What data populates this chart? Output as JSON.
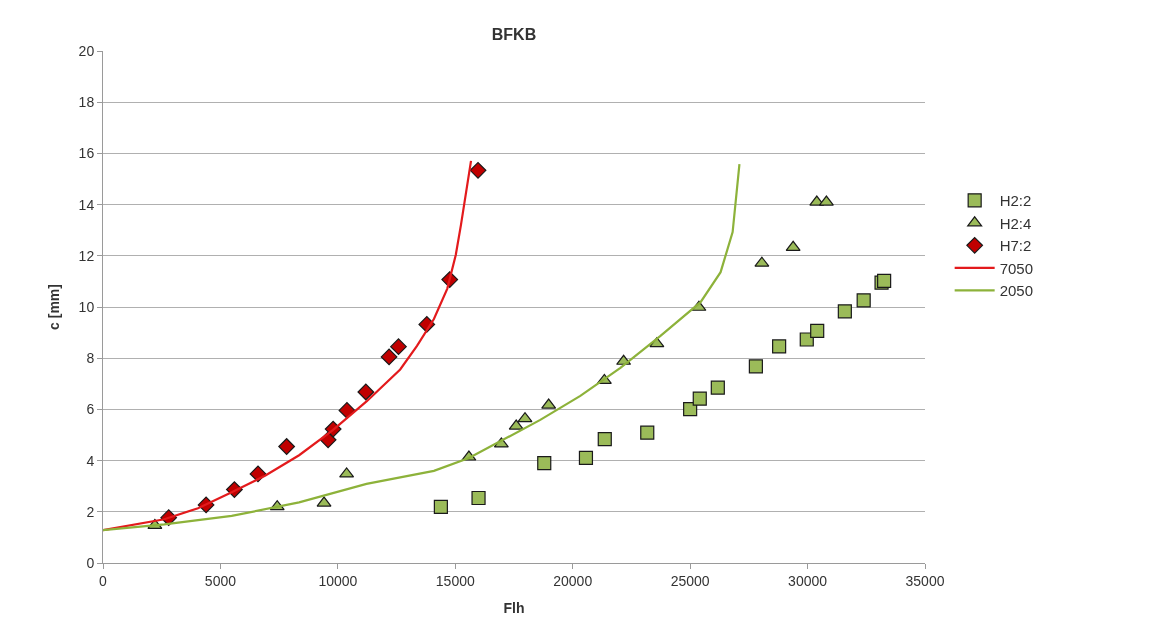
{
  "chart_data": {
    "type": "scatter",
    "title": "BFKB",
    "xlabel": "Flh",
    "ylabel": "c [mm]",
    "xlim": [
      0,
      35000
    ],
    "xticks": [
      0,
      5000,
      10000,
      15000,
      20000,
      25000,
      30000,
      35000
    ],
    "ylim": [
      0,
      20
    ],
    "yticks": [
      0,
      2,
      4,
      6,
      8,
      10,
      12,
      14,
      16,
      18,
      20
    ],
    "grid": "y",
    "legend": "right",
    "series": [
      {
        "name": "H2:2",
        "marker": "square",
        "color": "#9bbb59",
        "x": [
          14386,
          15990,
          18788,
          20563,
          21365,
          23174,
          25000,
          25410,
          26178,
          27799,
          28789,
          29966,
          30410,
          31587,
          32389,
          33150,
          33260
        ],
        "values": [
          2.19,
          2.54,
          3.9,
          4.11,
          4.84,
          5.09,
          6.01,
          6.42,
          6.85,
          7.68,
          8.46,
          8.73,
          9.07,
          9.83,
          10.26,
          10.95,
          11.02
        ]
      },
      {
        "name": "H2:4",
        "marker": "triangle",
        "color": "#9bbb59",
        "x": [
          2209,
          7418,
          9412,
          10373,
          15580,
          16962,
          17594,
          17969,
          18976,
          21348,
          22167,
          23584,
          25375,
          28055,
          29386,
          30392,
          30802
        ],
        "values": [
          1.47,
          2.2,
          2.34,
          3.48,
          4.14,
          4.65,
          5.35,
          5.64,
          6.17,
          7.13,
          7.88,
          8.57,
          9.99,
          11.71,
          12.33,
          14.1,
          14.1
        ]
      },
      {
        "name": "H7:2",
        "marker": "diamond",
        "color": "#c00000",
        "x": [
          2798,
          4390,
          5595,
          6600,
          7819,
          9584,
          9799,
          10387,
          11191,
          12181,
          12582,
          13788,
          14763,
          15968
        ],
        "values": [
          1.77,
          2.27,
          2.87,
          3.48,
          4.55,
          4.81,
          5.23,
          5.96,
          6.68,
          8.05,
          8.45,
          9.32,
          11.07,
          15.34
        ]
      },
      {
        "name": "7050",
        "type": "line",
        "marker": "none",
        "color": "#e31a1c",
        "x": [
          0,
          2611,
          4046,
          5480,
          6915,
          8350,
          9785,
          11220,
          12654,
          13370,
          14090,
          14660,
          15020,
          15240,
          15670
        ],
        "values": [
          1.28,
          1.71,
          2.14,
          2.76,
          3.42,
          4.21,
          5.19,
          6.31,
          7.56,
          8.48,
          9.53,
          10.72,
          12.03,
          13.2,
          15.71
        ]
      },
      {
        "name": "2050",
        "type": "line",
        "marker": "none",
        "color": "#8db23a",
        "x": [
          0,
          2611,
          5480,
          8350,
          11220,
          14090,
          15580,
          18618,
          20324,
          22031,
          23737,
          25444,
          26297,
          26809,
          27099
        ],
        "values": [
          1.28,
          1.51,
          1.84,
          2.37,
          3.09,
          3.6,
          4.1,
          5.59,
          6.53,
          7.62,
          8.87,
          10.19,
          11.36,
          12.93,
          15.58
        ]
      }
    ]
  }
}
